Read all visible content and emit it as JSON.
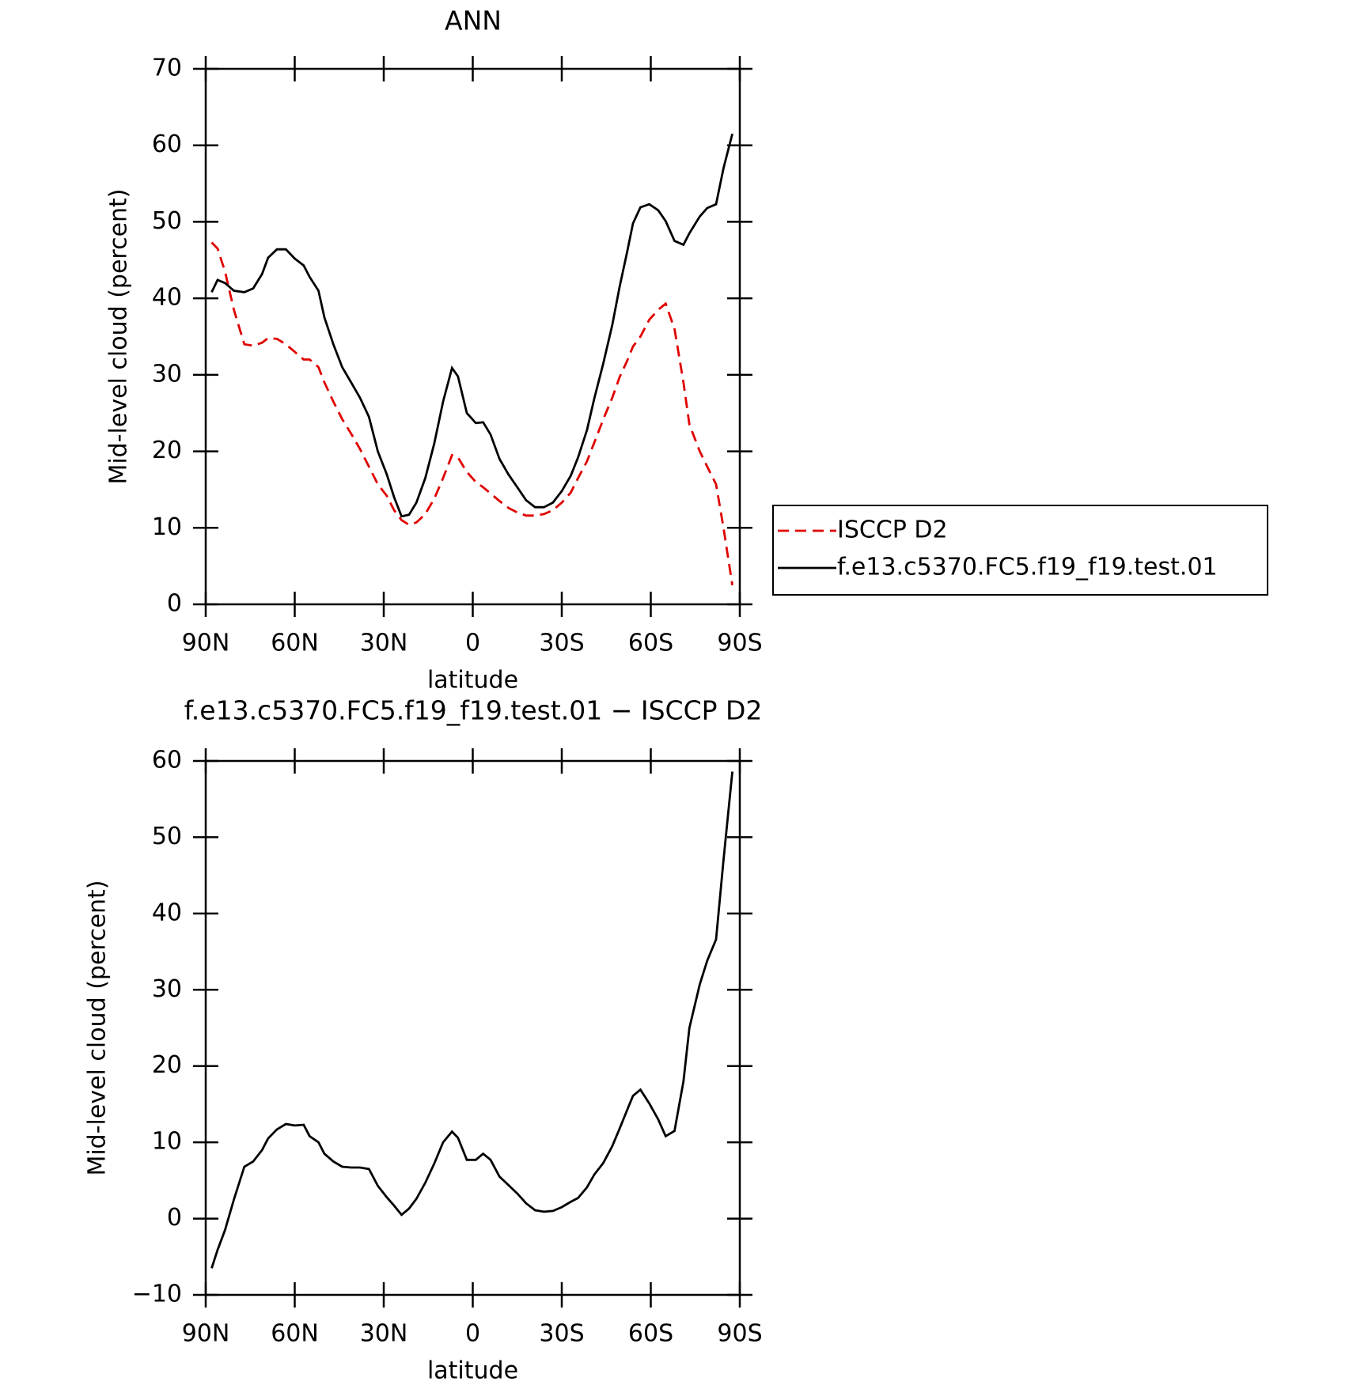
{
  "chart_data": [
    {
      "type": "line",
      "title": "ANN",
      "xlabel": "latitude",
      "ylabel": "Mid-level cloud (percent)",
      "x": [
        88,
        86,
        83.5,
        80.5,
        77,
        74,
        71,
        69,
        66,
        63,
        60,
        57,
        55,
        52,
        50,
        47,
        44,
        41,
        38,
        35,
        32,
        29,
        26.5,
        24,
        21.5,
        19,
        16,
        13,
        10,
        7,
        5,
        2,
        -1,
        -3.5,
        -6,
        -9,
        -12,
        -15,
        -18,
        -21,
        -24,
        -27,
        -30,
        -33,
        -35.5,
        -38.5,
        -41,
        -44,
        -47,
        -49.5,
        -52,
        -54,
        -56.5,
        -59.5,
        -62.5,
        -65,
        -68,
        -71,
        -73,
        -76.5,
        -79,
        -82,
        -84.5,
        -87.5
      ],
      "series": [
        {
          "name": "ISCCP D2",
          "color": "#e00000",
          "dash": true,
          "values": [
            47.3,
            46.5,
            43.5,
            38.5,
            34,
            33.8,
            34.2,
            34.8,
            34.7,
            34,
            33,
            32,
            32,
            31,
            29,
            26.5,
            24.2,
            22.3,
            20.3,
            18,
            15.7,
            14.2,
            12.3,
            11,
            10.4,
            10.7,
            11.8,
            13.8,
            16.5,
            19.5,
            19.2,
            17.3,
            16,
            15.3,
            14.5,
            13.5,
            12.6,
            12,
            11.6,
            11.6,
            11.8,
            12.3,
            13.3,
            14.6,
            16.5,
            18.7,
            21.2,
            24.2,
            27,
            29.7,
            31.8,
            33.7,
            35,
            37.2,
            38.5,
            39.3,
            36,
            29,
            23.5,
            20,
            18,
            15.7,
            10,
            2.5
          ]
        },
        {
          "name": "f.e13.c5370.FC5.f19_f19.test.01",
          "color": "#000000",
          "dash": false,
          "values": [
            40.8,
            42.4,
            42,
            41,
            40.8,
            41.3,
            43.2,
            45.3,
            46.4,
            46.4,
            45.2,
            44.3,
            42.8,
            41,
            37.5,
            34,
            31,
            29,
            27,
            24.5,
            20,
            17,
            14,
            11.5,
            11.7,
            13.3,
            16.5,
            21,
            26.5,
            30.9,
            29.8,
            25,
            23.7,
            23.8,
            22.2,
            19,
            17,
            15.3,
            13.6,
            12.7,
            12.7,
            13.3,
            14.8,
            16.8,
            19.2,
            22.8,
            27,
            31.5,
            36.5,
            41.5,
            46,
            49.8,
            51.9,
            52.3,
            51.5,
            50.1,
            47.5,
            47,
            48.5,
            50.7,
            51.8,
            52.3,
            57,
            61.5
          ]
        }
      ],
      "xlim": [
        90,
        -90
      ],
      "xticks": [
        {
          "value": 90,
          "label": "90N"
        },
        {
          "value": 60,
          "label": "60N"
        },
        {
          "value": 30,
          "label": "30N"
        },
        0,
        {
          "value": -30,
          "label": "30S"
        },
        {
          "value": -60,
          "label": "60S"
        },
        {
          "value": -90,
          "label": "90S"
        }
      ],
      "ylim": [
        0,
        70
      ],
      "yticks": [
        0,
        10,
        20,
        30,
        40,
        50,
        60,
        70
      ],
      "legend": "right"
    },
    {
      "type": "line",
      "title": "f.e13.c5370.FC5.f19_f19.test.01 − ISCCP D2",
      "xlabel": "latitude",
      "ylabel": "Mid-level cloud (percent)",
      "x": [
        88,
        86,
        83.5,
        80.5,
        77,
        74,
        71,
        69,
        66,
        63,
        60,
        57,
        55,
        52,
        50,
        47,
        44,
        41,
        38,
        35,
        32,
        29,
        26.5,
        24,
        21.5,
        19,
        16,
        13,
        10,
        7,
        5,
        2,
        -1,
        -3.5,
        -6,
        -9,
        -12,
        -15,
        -18,
        -21,
        -24,
        -27,
        -30,
        -33,
        -35.5,
        -38.5,
        -41,
        -44,
        -47,
        -49.5,
        -52,
        -54,
        -56.5,
        -59.5,
        -62.5,
        -65,
        -68,
        -71,
        -73,
        -76.5,
        -79,
        -82,
        -84.5,
        -87.5
      ],
      "series": [
        {
          "color": "#000000",
          "dash": false,
          "values": [
            -6.5,
            -4.1,
            -1.5,
            2.5,
            6.8,
            7.5,
            9,
            10.5,
            11.7,
            12.4,
            12.2,
            12.3,
            10.8,
            10,
            8.5,
            7.5,
            6.8,
            6.7,
            6.7,
            6.5,
            4.3,
            2.8,
            1.7,
            0.5,
            1.3,
            2.6,
            4.7,
            7.2,
            10,
            11.4,
            10.6,
            7.7,
            7.7,
            8.5,
            7.7,
            5.5,
            4.4,
            3.3,
            2,
            1.1,
            0.9,
            1,
            1.5,
            2.2,
            2.7,
            4.1,
            5.8,
            7.3,
            9.5,
            11.8,
            14.2,
            16.1,
            16.9,
            15.1,
            13,
            10.8,
            11.5,
            18,
            25,
            30.7,
            33.8,
            36.6,
            47,
            58.6
          ]
        }
      ],
      "xlim": [
        90,
        -90
      ],
      "xticks": [
        {
          "value": 90,
          "label": "90N"
        },
        {
          "value": 60,
          "label": "60N"
        },
        {
          "value": 30,
          "label": "30N"
        },
        0,
        {
          "value": -30,
          "label": "30S"
        },
        {
          "value": -60,
          "label": "60S"
        },
        {
          "value": -90,
          "label": "90S"
        }
      ],
      "ylim": [
        -10,
        60
      ],
      "yticks": [
        {
          "value": -10,
          "label": "−10"
        },
        0,
        10,
        20,
        30,
        40,
        50,
        60
      ]
    }
  ]
}
